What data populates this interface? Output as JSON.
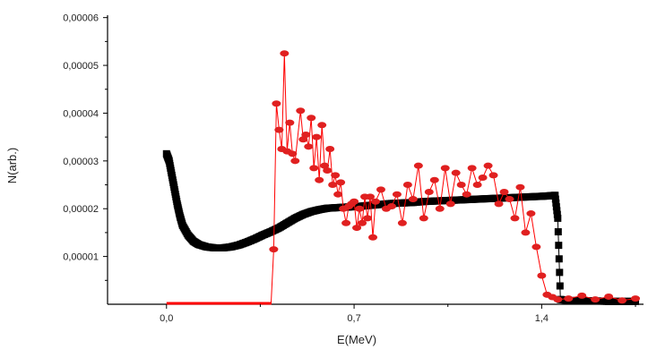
{
  "chart_data": {
    "type": "scatter",
    "xlabel": "E(MeV)",
    "ylabel": "N(arb.)",
    "xlim": [
      -0.22,
      1.78
    ],
    "ylim": [
      0,
      6.05e-05
    ],
    "x_ticks": [
      0.0,
      0.7,
      1.4
    ],
    "x_tick_labels": [
      "0,0",
      "0,7",
      "1,4"
    ],
    "y_ticks": [
      1e-05,
      2e-05,
      3e-05,
      4e-05,
      5e-05,
      6e-05
    ],
    "y_tick_labels": [
      "0,00001",
      "0,00002",
      "0,00003",
      "0,00004",
      "0,00005",
      "0,00006"
    ],
    "grid": false,
    "colors": {
      "black_series": "#000000",
      "red_series": "#ff0000",
      "red_marker_fill": "#e02020"
    },
    "series": [
      {
        "marker": "square",
        "color": "#000000",
        "x": [
          0.0,
          0.01,
          0.02,
          0.03,
          0.04,
          0.05,
          0.06,
          0.08,
          0.1,
          0.12,
          0.15,
          0.18,
          0.21,
          0.24,
          0.27,
          0.3,
          0.33,
          0.36,
          0.39,
          0.42,
          0.45,
          0.48,
          0.51,
          0.54,
          0.57,
          0.6,
          0.63,
          0.66,
          0.69,
          0.72,
          0.76,
          0.8,
          0.84,
          0.88,
          0.92,
          0.96,
          1.0,
          1.04,
          1.08,
          1.12,
          1.16,
          1.2,
          1.24,
          1.28,
          1.32,
          1.36,
          1.4,
          1.43,
          1.45,
          1.46,
          1.47,
          1.5,
          1.55,
          1.6,
          1.65,
          1.7,
          1.75
        ],
        "y": [
          3.15e-05,
          3e-05,
          2.7e-05,
          2.4e-05,
          2.1e-05,
          1.85e-05,
          1.65e-05,
          1.45e-05,
          1.32e-05,
          1.25e-05,
          1.2e-05,
          1.18e-05,
          1.18e-05,
          1.2e-05,
          1.24e-05,
          1.3e-05,
          1.37e-05,
          1.45e-05,
          1.52e-05,
          1.6e-05,
          1.7e-05,
          1.8e-05,
          1.88e-05,
          1.94e-05,
          1.98e-05,
          2.01e-05,
          2.02e-05,
          2.03e-05,
          2.04e-05,
          2.05e-05,
          2.07e-05,
          2.09e-05,
          2.11e-05,
          2.12e-05,
          2.13e-05,
          2.15e-05,
          2.16e-05,
          2.17e-05,
          2.18e-05,
          2.19e-05,
          2.2e-05,
          2.21e-05,
          2.22e-05,
          2.23e-05,
          2.24e-05,
          2.25e-05,
          2.26e-05,
          2.27e-05,
          2.28e-05,
          1.8e-05,
          1e-06,
          8e-07,
          7e-07,
          7e-07,
          6e-07,
          6e-07,
          6e-07
        ]
      },
      {
        "marker": "circle",
        "color": "#ff0000",
        "x": [
          0.0,
          0.1,
          0.2,
          0.3,
          0.39,
          0.4,
          0.41,
          0.42,
          0.43,
          0.44,
          0.45,
          0.46,
          0.47,
          0.48,
          0.5,
          0.51,
          0.52,
          0.53,
          0.54,
          0.55,
          0.56,
          0.57,
          0.58,
          0.59,
          0.6,
          0.61,
          0.62,
          0.63,
          0.64,
          0.65,
          0.66,
          0.67,
          0.68,
          0.69,
          0.7,
          0.71,
          0.72,
          0.73,
          0.74,
          0.75,
          0.76,
          0.77,
          0.78,
          0.8,
          0.82,
          0.84,
          0.86,
          0.88,
          0.9,
          0.92,
          0.94,
          0.96,
          0.98,
          1.0,
          1.02,
          1.04,
          1.06,
          1.08,
          1.1,
          1.12,
          1.14,
          1.16,
          1.18,
          1.2,
          1.22,
          1.24,
          1.26,
          1.28,
          1.3,
          1.32,
          1.34,
          1.36,
          1.38,
          1.4,
          1.42,
          1.44,
          1.46,
          1.5,
          1.55,
          1.6,
          1.65,
          1.7,
          1.75
        ],
        "y": [
          0.0,
          0.0,
          0.0,
          0.0,
          0.0,
          1.15e-05,
          4.2e-05,
          3.65e-05,
          3.25e-05,
          5.25e-05,
          3.2e-05,
          3.8e-05,
          3.15e-05,
          3e-05,
          4.05e-05,
          3.45e-05,
          3.55e-05,
          3.3e-05,
          3.9e-05,
          2.85e-05,
          3.5e-05,
          2.6e-05,
          3.75e-05,
          2.9e-05,
          2.8e-05,
          3.25e-05,
          2.5e-05,
          2.7e-05,
          2.3e-05,
          2.55e-05,
          2e-05,
          1.7e-05,
          2.05e-05,
          2.1e-05,
          2.15e-05,
          1.6e-05,
          2e-05,
          1.7e-05,
          2.25e-05,
          1.8e-05,
          2.25e-05,
          1.4e-05,
          2.15e-05,
          2.4e-05,
          2e-05,
          2.05e-05,
          2.3e-05,
          1.7e-05,
          2.5e-05,
          2.2e-05,
          2.9e-05,
          1.8e-05,
          2.35e-05,
          2.6e-05,
          2e-05,
          2.85e-05,
          2.1e-05,
          2.75e-05,
          2.5e-05,
          2.3e-05,
          2.85e-05,
          2.5e-05,
          2.65e-05,
          2.9e-05,
          2.7e-05,
          2.1e-05,
          2.35e-05,
          2.2e-05,
          1.8e-05,
          2.45e-05,
          1.5e-05,
          1.9e-05,
          1.2e-05,
          6e-06,
          2e-06,
          1.5e-06,
          1e-06,
          1.2e-06,
          1.8e-06,
          1e-06,
          1.6e-06,
          8e-07,
          1.2e-06
        ]
      }
    ]
  }
}
